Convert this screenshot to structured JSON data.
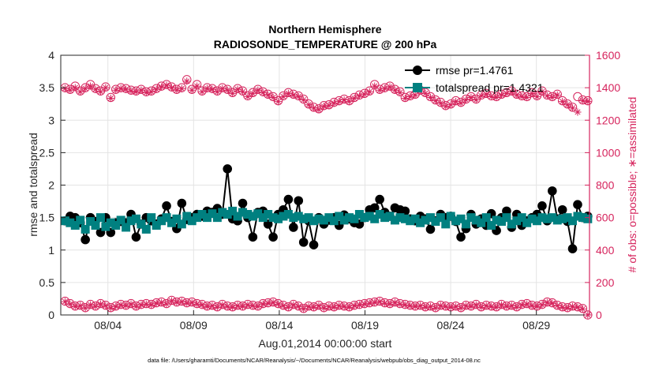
{
  "chart_data": {
    "type": "line",
    "title": "Northern Hemisphere",
    "subtitle": "RADIOSONDE_TEMPERATURE @ 200 hPa",
    "xlabel": "Aug.01,2014 00:00:00 start",
    "ylabel_left": "rmse and totalspread",
    "ylabel_right": "# of obs: o=possible; ∗=assimilated",
    "footnote": "data file: /Users/gharamti/Documents/NCAR/Reanalysis/~/Documents/NCAR/Reanalysis/webpub/obs_diag_output_2014-08.nc",
    "x_ticks": [
      {
        "day": 4,
        "label": "08/04"
      },
      {
        "day": 9,
        "label": "08/09"
      },
      {
        "day": 14,
        "label": "08/14"
      },
      {
        "day": 19,
        "label": "08/19"
      },
      {
        "day": 24,
        "label": "08/24"
      },
      {
        "day": 29,
        "label": "08/29"
      }
    ],
    "xlim": [
      1.25,
      32.1
    ],
    "ylim_left": [
      0,
      4
    ],
    "ylim_right": [
      0,
      1600
    ],
    "left_ticks": [
      "0",
      "0.5",
      "1",
      "1.5",
      "2",
      "2.5",
      "3",
      "3.5",
      "4"
    ],
    "right_ticks": [
      "0",
      "200",
      "400",
      "600",
      "800",
      "1000",
      "1200",
      "1400",
      "1600"
    ],
    "colors": {
      "rmse": "#000000",
      "spread": "#008080",
      "obs": "#d6245d",
      "grid": "#e4e4e4"
    },
    "legend": [
      {
        "name": "rmse pr=1.4761",
        "marker": "circle"
      },
      {
        "name": "totalspread pr=1.4321",
        "marker": "square"
      }
    ],
    "series": [
      {
        "name": "rmse",
        "axis": "left",
        "values": [
          1.45,
          1.52,
          1.5,
          1.42,
          1.16,
          1.5,
          1.44,
          1.27,
          1.5,
          1.27,
          1.42,
          1.44,
          1.42,
          1.55,
          1.2,
          1.4,
          1.5,
          1.45,
          1.4,
          1.48,
          1.68,
          1.44,
          1.33,
          1.72,
          1.47,
          1.5,
          1.55,
          1.52,
          1.6,
          1.58,
          1.64,
          1.55,
          2.25,
          1.48,
          1.45,
          1.72,
          1.5,
          1.2,
          1.58,
          1.6,
          1.4,
          1.2,
          1.55,
          1.62,
          1.78,
          1.35,
          1.76,
          1.12,
          1.45,
          1.08,
          1.5,
          1.4,
          1.46,
          1.5,
          1.38,
          1.54,
          1.48,
          1.42,
          1.4,
          1.5,
          1.62,
          1.65,
          1.78,
          1.58,
          1.52,
          1.65,
          1.62,
          1.6,
          1.48,
          1.45,
          1.52,
          1.48,
          1.32,
          1.45,
          1.55,
          1.5,
          1.52,
          1.44,
          1.2,
          1.33,
          1.55,
          1.4,
          1.48,
          1.38,
          1.56,
          1.3,
          1.5,
          1.6,
          1.35,
          1.55,
          1.38,
          1.45,
          1.5,
          1.55,
          1.68,
          1.45,
          1.91,
          1.48,
          1.62,
          1.44,
          1.02,
          1.7,
          1.5,
          1.52
        ]
      },
      {
        "name": "totalspread",
        "axis": "left",
        "values": [
          1.45,
          1.42,
          1.38,
          1.46,
          1.32,
          1.44,
          1.38,
          1.5,
          1.36,
          1.42,
          1.38,
          1.46,
          1.35,
          1.45,
          1.48,
          1.4,
          1.32,
          1.5,
          1.38,
          1.45,
          1.5,
          1.42,
          1.48,
          1.4,
          1.52,
          1.45,
          1.5,
          1.55,
          1.5,
          1.56,
          1.5,
          1.58,
          1.55,
          1.6,
          1.52,
          1.58,
          1.55,
          1.52,
          1.56,
          1.5,
          1.55,
          1.5,
          1.48,
          1.52,
          1.55,
          1.5,
          1.52,
          1.48,
          1.5,
          1.45,
          1.48,
          1.46,
          1.5,
          1.45,
          1.52,
          1.46,
          1.5,
          1.48,
          1.55,
          1.5,
          1.52,
          1.48,
          1.55,
          1.5,
          1.52,
          1.46,
          1.5,
          1.48,
          1.45,
          1.48,
          1.42,
          1.46,
          1.5,
          1.44,
          1.5,
          1.4,
          1.52,
          1.45,
          1.48,
          1.4,
          1.5,
          1.46,
          1.42,
          1.5,
          1.38,
          1.46,
          1.44,
          1.5,
          1.4,
          1.45,
          1.5,
          1.42,
          1.48,
          1.45,
          1.5,
          1.48,
          1.5,
          1.46,
          1.48,
          1.5,
          1.45,
          1.52,
          1.5,
          1.48
        ]
      },
      {
        "name": "obs possible",
        "axis": "right",
        "values": [
          1400,
          1390,
          1410,
          1380,
          1400,
          1420,
          1395,
          1380,
          1405,
          1340,
          1390,
          1400,
          1395,
          1385,
          1380,
          1390,
          1375,
          1380,
          1395,
          1410,
          1420,
          1405,
          1390,
          1400,
          1450,
          1390,
          1420,
          1380,
          1400,
          1395,
          1380,
          1400,
          1390,
          1370,
          1395,
          1380,
          1350,
          1370,
          1390,
          1375,
          1360,
          1345,
          1320,
          1350,
          1370,
          1360,
          1350,
          1330,
          1300,
          1280,
          1270,
          1290,
          1295,
          1310,
          1320,
          1330,
          1320,
          1340,
          1355,
          1365,
          1380,
          1420,
          1390,
          1400,
          1410,
          1390,
          1375,
          1340,
          1350,
          1360,
          1385,
          1370,
          1345,
          1325,
          1310,
          1290,
          1300,
          1320,
          1310,
          1330,
          1345,
          1330,
          1355,
          1365,
          1350,
          1345,
          1360,
          1370,
          1380,
          1360,
          1350,
          1345,
          1370,
          1350,
          1380,
          1355,
          1345,
          1360,
          1320,
          1300,
          1280,
          1345,
          1325,
          1320
        ]
      },
      {
        "name": "obs assimilated",
        "axis": "right",
        "values": [
          1395,
          1385,
          1400,
          1375,
          1395,
          1410,
          1390,
          1375,
          1400,
          1335,
          1385,
          1395,
          1390,
          1380,
          1375,
          1385,
          1370,
          1375,
          1390,
          1405,
          1415,
          1400,
          1385,
          1395,
          1440,
          1385,
          1410,
          1375,
          1395,
          1390,
          1375,
          1395,
          1385,
          1365,
          1390,
          1375,
          1345,
          1365,
          1385,
          1370,
          1355,
          1340,
          1315,
          1345,
          1365,
          1355,
          1345,
          1325,
          1295,
          1275,
          1265,
          1285,
          1290,
          1305,
          1315,
          1325,
          1315,
          1335,
          1350,
          1360,
          1375,
          1410,
          1385,
          1395,
          1405,
          1385,
          1370,
          1335,
          1345,
          1355,
          1380,
          1365,
          1340,
          1320,
          1305,
          1285,
          1295,
          1315,
          1305,
          1325,
          1340,
          1325,
          1350,
          1360,
          1345,
          1340,
          1355,
          1365,
          1375,
          1355,
          1345,
          1340,
          1365,
          1345,
          1375,
          1350,
          1340,
          1355,
          1315,
          1295,
          1275,
          1250,
          1320,
          1315
        ]
      },
      {
        "name": "obs low possible",
        "axis": "right",
        "values": [
          85,
          70,
          55,
          60,
          45,
          65,
          55,
          70,
          60,
          45,
          55,
          65,
          60,
          70,
          55,
          65,
          70,
          65,
          75,
          80,
          70,
          90,
          80,
          85,
          75,
          80,
          70,
          65,
          55,
          60,
          50,
          65,
          55,
          50,
          60,
          55,
          65,
          60,
          55,
          70,
          75,
          80,
          70,
          60,
          50,
          65,
          55,
          40,
          55,
          50,
          60,
          45,
          55,
          50,
          60,
          55,
          50,
          60,
          65,
          70,
          75,
          80,
          85,
          75,
          70,
          80,
          70,
          65,
          60,
          55,
          60,
          50,
          55,
          45,
          60,
          55,
          50,
          55,
          45,
          60,
          55,
          65,
          50,
          60,
          55,
          50,
          65,
          55,
          60,
          50,
          65,
          70,
          60,
          55,
          65,
          80,
          75,
          60,
          50,
          45,
          55,
          50,
          40,
          0
        ]
      },
      {
        "name": "obs low assimilated",
        "axis": "right",
        "values": [
          82,
          67,
          52,
          57,
          42,
          62,
          52,
          67,
          57,
          42,
          52,
          62,
          57,
          67,
          52,
          62,
          67,
          62,
          72,
          77,
          67,
          87,
          77,
          82,
          72,
          77,
          67,
          62,
          52,
          57,
          47,
          62,
          52,
          47,
          57,
          52,
          62,
          57,
          52,
          67,
          72,
          77,
          67,
          57,
          47,
          62,
          52,
          37,
          52,
          47,
          57,
          42,
          52,
          47,
          57,
          52,
          47,
          57,
          62,
          67,
          72,
          77,
          82,
          72,
          67,
          77,
          67,
          62,
          57,
          52,
          57,
          47,
          52,
          42,
          57,
          52,
          47,
          52,
          42,
          57,
          52,
          62,
          47,
          57,
          52,
          47,
          62,
          52,
          57,
          47,
          62,
          67,
          57,
          52,
          62,
          77,
          72,
          57,
          47,
          42,
          52,
          47,
          37,
          0
        ]
      }
    ]
  }
}
